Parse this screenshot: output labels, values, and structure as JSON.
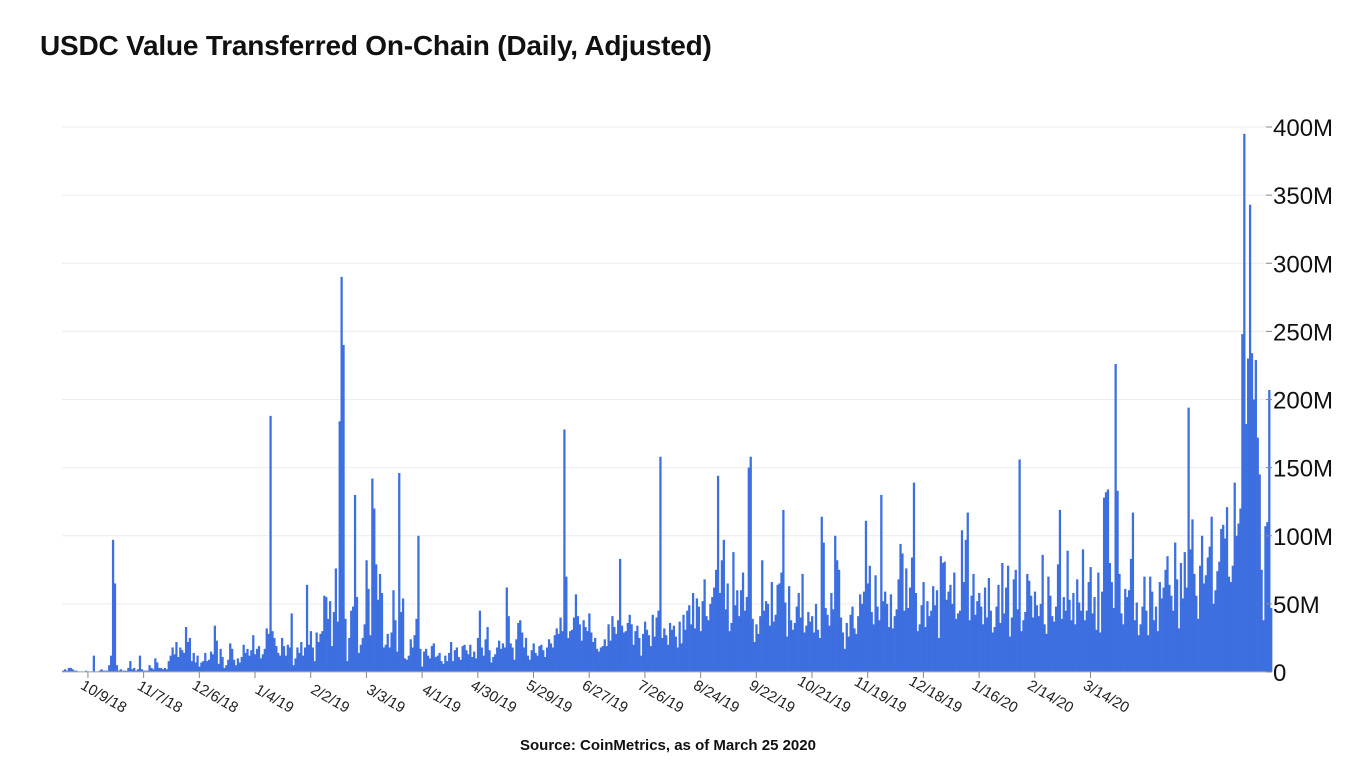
{
  "chart_data": {
    "type": "bar",
    "title": "USDC Value Transferred On-Chain (Daily, Adjusted)",
    "source": "Source: CoinMetrics, as of March 25 2020",
    "xlabel": "",
    "ylabel": "",
    "ylim": [
      0,
      400000000
    ],
    "y_ticks": [
      {
        "value": 0,
        "label": "0"
      },
      {
        "value": 50000000,
        "label": "50M"
      },
      {
        "value": 100000000,
        "label": "100M"
      },
      {
        "value": 150000000,
        "label": "150M"
      },
      {
        "value": 200000000,
        "label": "200M"
      },
      {
        "value": 250000000,
        "label": "250M"
      },
      {
        "value": 300000000,
        "label": "300M"
      },
      {
        "value": 350000000,
        "label": "350M"
      },
      {
        "value": 400000000,
        "label": "400M"
      }
    ],
    "x_start_date": "2018-09-26",
    "x_ticks": [
      "10/9/18",
      "11/7/18",
      "12/6/18",
      "1/4/19",
      "2/2/19",
      "3/3/19",
      "4/1/19",
      "4/30/19",
      "5/29/19",
      "6/27/19",
      "7/26/19",
      "8/24/19",
      "9/22/19",
      "10/21/19",
      "11/19/19",
      "12/18/19",
      "1/16/20",
      "2/14/20",
      "3/14/20"
    ],
    "grid": true,
    "color": "#3d6fe0",
    "values_millions": [
      1.0,
      2.0,
      1.0,
      3.0,
      3.0,
      2.0,
      1.0,
      1.0,
      0.5,
      0.5,
      0.5,
      0.5,
      1.0,
      0.5,
      0.5,
      0.5,
      12.0,
      0.5,
      0.5,
      1.0,
      2.0,
      1.0,
      1.0,
      1.0,
      5.0,
      12.0,
      97.0,
      65.0,
      5.0,
      1.0,
      2.0,
      1.0,
      1.0,
      1.0,
      3.0,
      8.0,
      2.0,
      3.0,
      1.0,
      2.0,
      12.0,
      2.0,
      1.0,
      1.0,
      1.0,
      5.0,
      3.0,
      2.0,
      10.0,
      7.0,
      3.0,
      3.0,
      2.0,
      3.0,
      2.0,
      8.0,
      12.0,
      18.0,
      13.0,
      22.0,
      11.0,
      18.0,
      16.0,
      14.0,
      33.0,
      22.0,
      25.0,
      8.0,
      14.0,
      7.0,
      12.0,
      4.0,
      7.0,
      8.0,
      14.0,
      8.0,
      9.0,
      15.0,
      13.0,
      34.0,
      23.0,
      6.0,
      17.0,
      11.0,
      3.0,
      5.0,
      9.0,
      21.0,
      17.0,
      9.0,
      5.0,
      10.0,
      7.0,
      11.0,
      20.0,
      14.0,
      17.0,
      12.0,
      16.0,
      27.0,
      13.0,
      17.0,
      19.0,
      10.0,
      13.0,
      17.0,
      32.0,
      28.0,
      188.0,
      30.0,
      25.0,
      19.0,
      14.0,
      12.0,
      25.0,
      19.0,
      12.0,
      20.0,
      18.0,
      43.0,
      5.0,
      10.0,
      18.0,
      14.0,
      22.0,
      12.0,
      18.0,
      64.0,
      20.0,
      30.0,
      18.0,
      8.0,
      29.0,
      22.0,
      28.0,
      30.0,
      56.0,
      55.0,
      39.0,
      52.0,
      19.0,
      44.0,
      76.0,
      37.0,
      184.0,
      290.0,
      240.0,
      39.0,
      8.0,
      25.0,
      45.0,
      48.0,
      130.0,
      55.0,
      14.0,
      20.0,
      25.0,
      35.0,
      82.0,
      61.0,
      27.0,
      142.0,
      120.0,
      79.0,
      53.0,
      72.0,
      58.0,
      18.0,
      20.0,
      28.0,
      18.0,
      29.0,
      60.0,
      38.0,
      15.0,
      146.0,
      44.0,
      54.0,
      10.0,
      9.0,
      12.0,
      24.0,
      18.0,
      27.0,
      39.0,
      100.0,
      17.0,
      4.0,
      15.0,
      17.0,
      12.0,
      10.0,
      19.0,
      21.0,
      11.0,
      12.0,
      14.0,
      8.0,
      6.0,
      12.0,
      8.0,
      14.0,
      22.0,
      8.0,
      16.0,
      18.0,
      11.0,
      9.0,
      19.0,
      20.0,
      16.0,
      13.0,
      20.0,
      11.0,
      15.0,
      10.0,
      25.0,
      45.0,
      18.0,
      12.0,
      24.0,
      33.0,
      16.0,
      7.0,
      11.0,
      13.0,
      18.0,
      23.0,
      17.0,
      21.0,
      18.0,
      62.0,
      41.0,
      21.0,
      18.0,
      9.0,
      24.0,
      36.0,
      38.0,
      29.0,
      18.0,
      25.0,
      12.0,
      9.0,
      16.0,
      21.0,
      14.0,
      12.0,
      19.0,
      20.0,
      16.0,
      11.0,
      18.0,
      24.0,
      21.0,
      18.0,
      27.0,
      32.0,
      28.0,
      40.0,
      30.0,
      178.0,
      70.0,
      25.0,
      30.0,
      31.0,
      40.0,
      57.0,
      41.0,
      35.0,
      23.0,
      38.0,
      33.0,
      30.0,
      43.0,
      29.0,
      22.0,
      25.0,
      17.0,
      15.0,
      18.0,
      19.0,
      24.0,
      19.0,
      35.0,
      23.0,
      41.0,
      33.0,
      28.0,
      38.0,
      83.0,
      34.0,
      29.0,
      30.0,
      36.0,
      42.0,
      35.0,
      20.0,
      30.0,
      34.0,
      25.0,
      12.0,
      28.0,
      37.0,
      31.0,
      27.0,
      19.0,
      42.0,
      26.0,
      40.0,
      45.0,
      158.0,
      25.0,
      32.0,
      27.0,
      20.0,
      36.0,
      31.0,
      34.0,
      26.0,
      18.0,
      37.0,
      21.0,
      42.0,
      31.0,
      45.0,
      49.0,
      35.0,
      58.0,
      32.0,
      54.0,
      48.0,
      30.0,
      52.0,
      68.0,
      41.0,
      38.0,
      50.0,
      55.0,
      62.0,
      75.0,
      144.0,
      58.0,
      82.0,
      97.0,
      46.0,
      65.0,
      30.0,
      36.0,
      88.0,
      49.0,
      60.0,
      41.0,
      60.0,
      73.0,
      45.0,
      55.0,
      150.0,
      158.0,
      39.0,
      22.0,
      35.0,
      28.0,
      41.0,
      82.0,
      45.0,
      52.0,
      50.0,
      34.0,
      66.0,
      37.0,
      42.0,
      64.0,
      65.0,
      73.0,
      119.0,
      51.0,
      26.0,
      63.0,
      38.0,
      31.0,
      36.0,
      48.0,
      58.0,
      40.0,
      72.0,
      29.0,
      34.0,
      44.0,
      37.0,
      41.0,
      29.0,
      50.0,
      31.0,
      25.0,
      114.0,
      95.0,
      47.0,
      42.0,
      34.0,
      58.0,
      46.0,
      100.0,
      82.0,
      75.0,
      40.0,
      29.0,
      17.0,
      36.0,
      26.0,
      42.0,
      48.0,
      32.0,
      28.0,
      41.0,
      57.0,
      50.0,
      59.0,
      111.0,
      65.0,
      78.0,
      44.0,
      35.0,
      71.0,
      48.0,
      38.0,
      130.0,
      52.0,
      59.0,
      50.0,
      33.0,
      57.0,
      32.0,
      41.0,
      46.0,
      68.0,
      94.0,
      87.0,
      45.0,
      76.0,
      47.0,
      62.0,
      84.0,
      139.0,
      58.0,
      30.0,
      35.0,
      49.0,
      66.0,
      33.0,
      52.0,
      41.0,
      45.0,
      63.0,
      49.0,
      60.0,
      25.0,
      85.0,
      80.0,
      81.0,
      53.0,
      59.0,
      64.0,
      50.0,
      73.0,
      39.0,
      43.0,
      45.0,
      104.0,
      66.0,
      97.0,
      117.0,
      38.0,
      56.0,
      72.0,
      42.0,
      52.0,
      58.0,
      48.0,
      35.0,
      62.0,
      40.0,
      69.0,
      45.0,
      29.0,
      33.0,
      48.0,
      64.0,
      36.0,
      80.0,
      43.0,
      62.0,
      78.0,
      26.0,
      40.0,
      68.0,
      75.0,
      46.0,
      156.0,
      30.0,
      38.0,
      44.0,
      72.0,
      67.0,
      56.0,
      40.0,
      59.0,
      49.0,
      41.0,
      50.0,
      86.0,
      35.0,
      28.0,
      70.0,
      56.0,
      41.0,
      37.0,
      48.0,
      79.0,
      119.0,
      39.0,
      55.0,
      45.0,
      89.0,
      53.0,
      38.0,
      58.0,
      35.0,
      68.0,
      51.0,
      45.0,
      90.0,
      38.0,
      45.0,
      66.0,
      77.0,
      43.0,
      55.0,
      31.0,
      73.0,
      29.0,
      59.0,
      128.0,
      132.0,
      134.0,
      80.0,
      66.0,
      47.0,
      226.0,
      133.0,
      72.0,
      43.0,
      35.0,
      61.0,
      55.0,
      60.0,
      83.0,
      117.0,
      38.0,
      51.0,
      27.0,
      35.0,
      48.0,
      70.0,
      45.0,
      27.0,
      70.0,
      59.0,
      38.0,
      48.0,
      30.0,
      66.0,
      54.0,
      62.0,
      75.0,
      85.0,
      64.0,
      56.0,
      45.0,
      95.0,
      68.0,
      32.0,
      80.0,
      54.0,
      88.0,
      62.0,
      194.0,
      90.0,
      112.0,
      72.0,
      56.0,
      39.0,
      78.0,
      100.0,
      65.0,
      71.0,
      84.0,
      92.0,
      114.0,
      50.0,
      60.0,
      74.0,
      81.0,
      105.0,
      108.0,
      98.0,
      121.0,
      70.0,
      66.0,
      78.0,
      139.0,
      100.0,
      109.0,
      120.0,
      248.0,
      395.0,
      182.0,
      230.0,
      343.0,
      234.0,
      200.0,
      229.0,
      172.0,
      145.0,
      75.0,
      38.0,
      107.0,
      110.0,
      207.0,
      47.0
    ]
  }
}
